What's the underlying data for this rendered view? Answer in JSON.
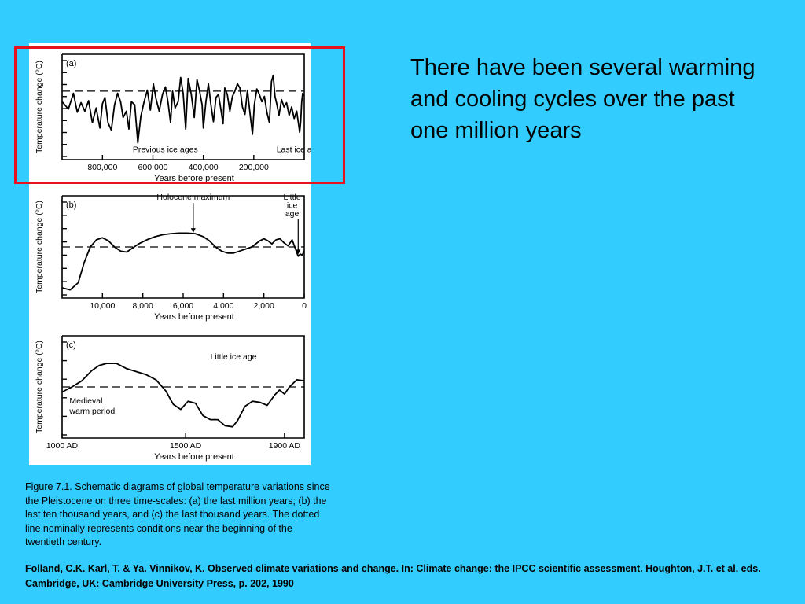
{
  "slide": {
    "text": "There have been several warming and cooling cycles over the past one million years",
    "caption": "Figure 7.1. Schematic diagrams of global temperature variations since the Pleistocene on three time-scales: (a) the last million years; (b) the last ten thousand years, and (c) the last thousand years. The dotted line nominally represents conditions near the beginning of the twentieth century.",
    "citation": "Folland, C.K. Karl, T. & Ya. Vinnikov, K. Observed climate variations and change. In: Climate change: the IPCC scientific assessment. Houghton, J.T. et al. eds. Cambridge, UK: Cambridge University Press, p. 202, 1990"
  },
  "colors": {
    "background": "#33ccff",
    "highlight": "#e8121e",
    "panel": "#ffffff",
    "line": "#000000"
  },
  "chart_data": [
    {
      "type": "line",
      "panel_label": "(a)",
      "ylabel": "Temperature change (°C)",
      "xlabel": "Years before present",
      "x_reversed": true,
      "xlim": [
        960000,
        0
      ],
      "ylim": [
        0,
        10
      ],
      "xticks": [
        800000,
        600000,
        400000,
        200000
      ],
      "xtick_labels": [
        "800,000",
        "600,000",
        "400,000",
        "200,000"
      ],
      "y_tick_count": 9,
      "reference_line": 6.5,
      "annotations": [
        {
          "text": "Previous ice ages",
          "x": 680000,
          "y": 0.7
        },
        {
          "text": "Last ice age",
          "x": 110000,
          "y": 0.7
        }
      ],
      "x": [
        960000,
        935000,
        915000,
        900000,
        885000,
        870000,
        855000,
        840000,
        825000,
        810000,
        800000,
        790000,
        778000,
        765000,
        752000,
        740000,
        728000,
        718000,
        705000,
        695000,
        685000,
        672000,
        660000,
        648000,
        635000,
        622000,
        610000,
        598000,
        588000,
        575000,
        562000,
        550000,
        540000,
        530000,
        522000,
        512000,
        500000,
        490000,
        480000,
        470000,
        460000,
        448000,
        436000,
        425000,
        415000,
        405000,
        400000,
        390000,
        380000,
        370000,
        360000,
        350000,
        340000,
        330000,
        322000,
        315000,
        305000,
        295000,
        285000,
        275000,
        265000,
        255000,
        245000,
        235000,
        225000,
        215000,
        205000,
        198000,
        188000,
        178000,
        168000,
        158000,
        148000,
        138000,
        130000,
        123000,
        116000,
        108000,
        100000,
        90000,
        80000,
        70000,
        60000,
        50000,
        40000,
        30000,
        22000,
        18000,
        14000,
        10000,
        6000,
        3000,
        0
      ],
      "values": [
        5.5,
        4.8,
        6.3,
        4.5,
        5.4,
        4.6,
        5.6,
        3.5,
        4.9,
        3.0,
        5.3,
        5.9,
        3.5,
        2.8,
        5.2,
        6.3,
        5.5,
        4.0,
        4.6,
        2.9,
        5.5,
        5.2,
        1.6,
        4.1,
        5.5,
        6.6,
        4.7,
        7.2,
        5.8,
        4.6,
        6.2,
        6.9,
        5.4,
        3.5,
        6.5,
        4.9,
        5.5,
        7.8,
        6.3,
        2.9,
        7.7,
        6.2,
        4.0,
        7.6,
        6.5,
        5.2,
        3.0,
        5.5,
        7.2,
        5.2,
        3.6,
        5.9,
        6.2,
        4.7,
        3.4,
        6.8,
        6.2,
        4.6,
        6.0,
        6.5,
        7.2,
        6.8,
        5.0,
        4.3,
        6.6,
        4.4,
        2.4,
        5.2,
        6.7,
        6.2,
        5.5,
        6.0,
        4.5,
        3.5,
        7.4,
        8.0,
        6.0,
        5.2,
        4.2,
        5.7,
        5.0,
        5.4,
        4.2,
        5.0,
        3.9,
        4.6,
        3.3,
        2.6,
        3.6,
        5.5,
        6.3,
        6.1,
        6.2
      ]
    },
    {
      "type": "line",
      "panel_label": "(b)",
      "ylabel": "Temperature change (°C)",
      "xlabel": "Years before present",
      "x_reversed": true,
      "xlim": [
        12000,
        0
      ],
      "ylim": [
        0,
        10
      ],
      "xticks": [
        10000,
        8000,
        6000,
        4000,
        2000,
        0
      ],
      "xtick_labels": [
        "10,000",
        "8,000",
        "6,000",
        "4,000",
        "2,000",
        "0"
      ],
      "y_tick_count": 8,
      "reference_line": 5.0,
      "annotations": [
        {
          "text": "Holocene maximum",
          "x": 5500,
          "y": 9.6,
          "arrow_to": [
            5500,
            6.3
          ]
        },
        {
          "text": "Little",
          "x": 600,
          "y": 9.6
        },
        {
          "text": "ice",
          "x": 600,
          "y": 8.8
        },
        {
          "text": "age",
          "x": 600,
          "y": 8.0,
          "arrow_to": [
            300,
            4.2
          ]
        }
      ],
      "x": [
        12000,
        11600,
        11200,
        10900,
        10600,
        10300,
        10000,
        9700,
        9400,
        9100,
        8800,
        8500,
        8200,
        7800,
        7400,
        7000,
        6600,
        6200,
        5800,
        5400,
        5000,
        4700,
        4400,
        4100,
        3800,
        3500,
        3200,
        2900,
        2600,
        2400,
        2200,
        2000,
        1800,
        1600,
        1400,
        1200,
        1000,
        800,
        600,
        450,
        300,
        200,
        100,
        0
      ],
      "values": [
        1.0,
        0.8,
        1.5,
        3.5,
        5.0,
        5.7,
        5.9,
        5.6,
        5.0,
        4.6,
        4.5,
        4.9,
        5.3,
        5.7,
        6.0,
        6.2,
        6.3,
        6.35,
        6.35,
        6.3,
        6.0,
        5.6,
        5.0,
        4.6,
        4.4,
        4.4,
        4.6,
        4.8,
        5.0,
        5.3,
        5.6,
        5.8,
        5.6,
        5.3,
        5.7,
        5.8,
        5.4,
        5.1,
        5.7,
        4.9,
        4.1,
        4.3,
        4.2,
        4.6
      ]
    },
    {
      "type": "line",
      "panel_label": "(c)",
      "ylabel": "Temperature change (°C)",
      "xlabel": "Years before present",
      "xlim": [
        1000,
        1980
      ],
      "ylim": [
        0,
        10
      ],
      "xticks": [
        1000,
        1500,
        1900
      ],
      "xtick_labels": [
        "1000 AD",
        "1500 AD",
        "1900 AD"
      ],
      "y_tick_count": 6,
      "reference_line": 5.0,
      "annotations": [
        {
          "text": "Little ice age",
          "x": 1600,
          "y": 7.7
        },
        {
          "text": "Medieval",
          "x": 1030,
          "y": 3.4
        },
        {
          "text": "warm period",
          "x": 1030,
          "y": 2.4
        }
      ],
      "x": [
        1000,
        1040,
        1080,
        1120,
        1150,
        1180,
        1220,
        1260,
        1300,
        1340,
        1380,
        1420,
        1450,
        1480,
        1510,
        1540,
        1570,
        1600,
        1630,
        1660,
        1690,
        1710,
        1740,
        1770,
        1800,
        1830,
        1860,
        1880,
        1900,
        1920,
        1950,
        1980
      ],
      "values": [
        4.5,
        5.0,
        5.6,
        6.6,
        7.1,
        7.3,
        7.3,
        6.8,
        6.5,
        6.2,
        5.7,
        4.6,
        3.3,
        2.8,
        3.6,
        3.4,
        2.2,
        1.8,
        1.8,
        1.2,
        1.1,
        1.7,
        3.1,
        3.6,
        3.5,
        3.2,
        4.2,
        4.7,
        4.3,
        5.0,
        5.7,
        5.6
      ]
    }
  ]
}
